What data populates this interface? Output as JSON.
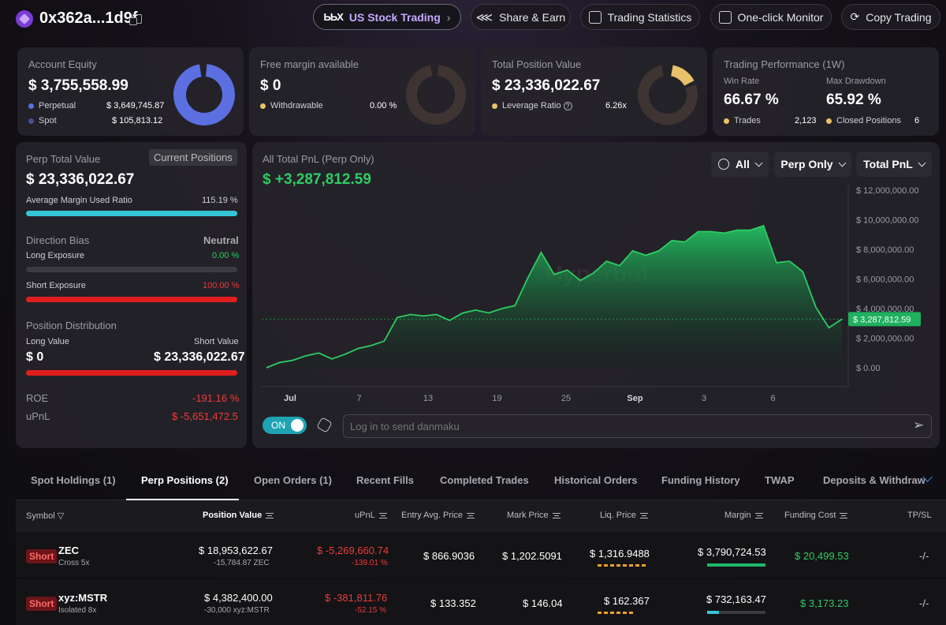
{
  "header": {
    "address": "0x362a...1d9f",
    "us_stock_label": "US Stock Trading",
    "us_stock_logo": "ЬЬΧ",
    "buttons": [
      "Share & Earn",
      "Trading Statistics",
      "One-click Monitor",
      "Copy Trading"
    ]
  },
  "equity": {
    "label": "Account Equity",
    "value": "$ 3,755,558.99",
    "perp_label": "Perpetual",
    "perp_value": "$ 3,649,745.87",
    "spot_label": "Spot",
    "spot_value": "$ 105,813.12",
    "perp_fraction": 0.972
  },
  "free_margin": {
    "label": "Free margin available",
    "value": "$ 0",
    "withdrawable_label": "Withdrawable",
    "withdrawable_value": "0.00 %"
  },
  "position_value": {
    "label": "Total Position Value",
    "value": "$ 23,336,022.67",
    "leverage_label": "Leverage Ratio",
    "leverage_value": "6.26x"
  },
  "performance": {
    "label": "Trading Performance (1W)",
    "win_rate_label": "Win Rate",
    "win_rate_value": "66.67 %",
    "drawdown_label": "Max Drawdown",
    "drawdown_value": "65.92 %",
    "trades_label": "Trades",
    "trades_value": "2,123",
    "closed_label": "Closed Positions",
    "closed_value": "6"
  },
  "perp_panel": {
    "label": "Perp Total Value",
    "current_positions": "Current Positions",
    "value": "$ 23,336,022.67",
    "margin_ratio_label": "Average Margin Used Ratio",
    "margin_ratio_value": "115.19 %",
    "direction_label": "Direction Bias",
    "direction_value": "Neutral",
    "long_exposure_label": "Long Exposure",
    "long_exposure_value": "0.00 %",
    "short_exposure_label": "Short Exposure",
    "short_exposure_value": "100.00 %",
    "distribution_label": "Position Distribution",
    "long_value_label": "Long Value",
    "long_value": "$ 0",
    "short_value_label": "Short Value",
    "short_value": "$ 23,336,022.67",
    "roe_label": "ROE",
    "roe_value": "-191.16 %",
    "upnl_label": "uPnL",
    "upnl_value": "$ -5,651,472.5"
  },
  "pnl": {
    "label": "All Total PnL (Perp Only)",
    "value": "$ +3,287,812.59",
    "filter_all": "All",
    "filter_perp": "Perp Only",
    "filter_total": "Total PnL",
    "watermark": "Hyperbot",
    "toggle_label": "ON",
    "danmaku_placeholder": "Log in to send danmaku"
  },
  "chart_data": {
    "type": "area",
    "ylim": [
      0,
      12000000
    ],
    "y_ticks": [
      "$ 12,000,000.00",
      "$ 10,000,000.00",
      "$ 8,000,000.00",
      "$ 6,000,000.00",
      "$ 4,000,000.00",
      "$ 2,000,000.00",
      "$ 0.00"
    ],
    "x_ticks": [
      "Jul",
      "7",
      "13",
      "19",
      "25",
      "Sep",
      "3",
      "6"
    ],
    "current_value_label": "$ 3,287,812.59",
    "values": [
      0,
      350000,
      500000,
      800000,
      1000000,
      600000,
      900000,
      1300000,
      1500000,
      1800000,
      3400000,
      3600000,
      3500000,
      3600000,
      3200000,
      3700000,
      3900000,
      3700000,
      4000000,
      4200000,
      6100000,
      7800000,
      6300000,
      6600000,
      5900000,
      6400000,
      7200000,
      6900000,
      7900000,
      7600000,
      7900000,
      8600000,
      8500000,
      9200000,
      9200000,
      9100000,
      9300000,
      9300000,
      9600000,
      7100000,
      7200000,
      6500000,
      4100000,
      2700000,
      3287812
    ]
  },
  "tabs": [
    "Spot Holdings (1)",
    "Perp Positions (2)",
    "Open Orders (1)",
    "Recent Fills",
    "Completed Trades",
    "Historical Orders",
    "Funding History",
    "TWAP",
    "Deposits & Withdraw"
  ],
  "table": {
    "headers": [
      "Symbol",
      "Position Value",
      "uPnL",
      "Entry Avg. Price",
      "Mark Price",
      "Liq. Price",
      "Margin",
      "Funding Cost",
      "TP/SL"
    ],
    "rows": [
      {
        "side": "Short",
        "symbol": "ZEC",
        "mode": "Cross 5x",
        "value": "$ 18,953,622.67",
        "size": "-15,784.87 ZEC",
        "upnl": "$ -5,269,660.74",
        "upnl_pct": "-139.01 %",
        "entry": "$ 866.9036",
        "mark": "$ 1,202.5091",
        "liq": "$ 1,316.9488",
        "margin": "$ 3,790,724.53",
        "funding": "$ 20,499.53",
        "tpsl": "-/-",
        "margin_fill": 1.0,
        "liq_fill": 0.85
      },
      {
        "side": "Short",
        "symbol": "xyz:MSTR",
        "mode": "Isolated 8x",
        "value": "$ 4,382,400.00",
        "size": "-30,000 xyz:MSTR",
        "upnl": "$ -381,811.76",
        "upnl_pct": "-52.15 %",
        "entry": "$ 133.352",
        "mark": "$ 146.04",
        "liq": "$ 162.367",
        "margin": "$ 732,163.47",
        "funding": "$ 3,173.23",
        "tpsl": "-/-",
        "margin_fill": 0.2,
        "liq_fill": 0.65
      }
    ]
  },
  "colors": {
    "accent": "#2ecc63",
    "negative": "#ec3b3b",
    "perp": "#5b6fe0",
    "gold": "#e8c16a",
    "teal": "#35c6d6"
  }
}
